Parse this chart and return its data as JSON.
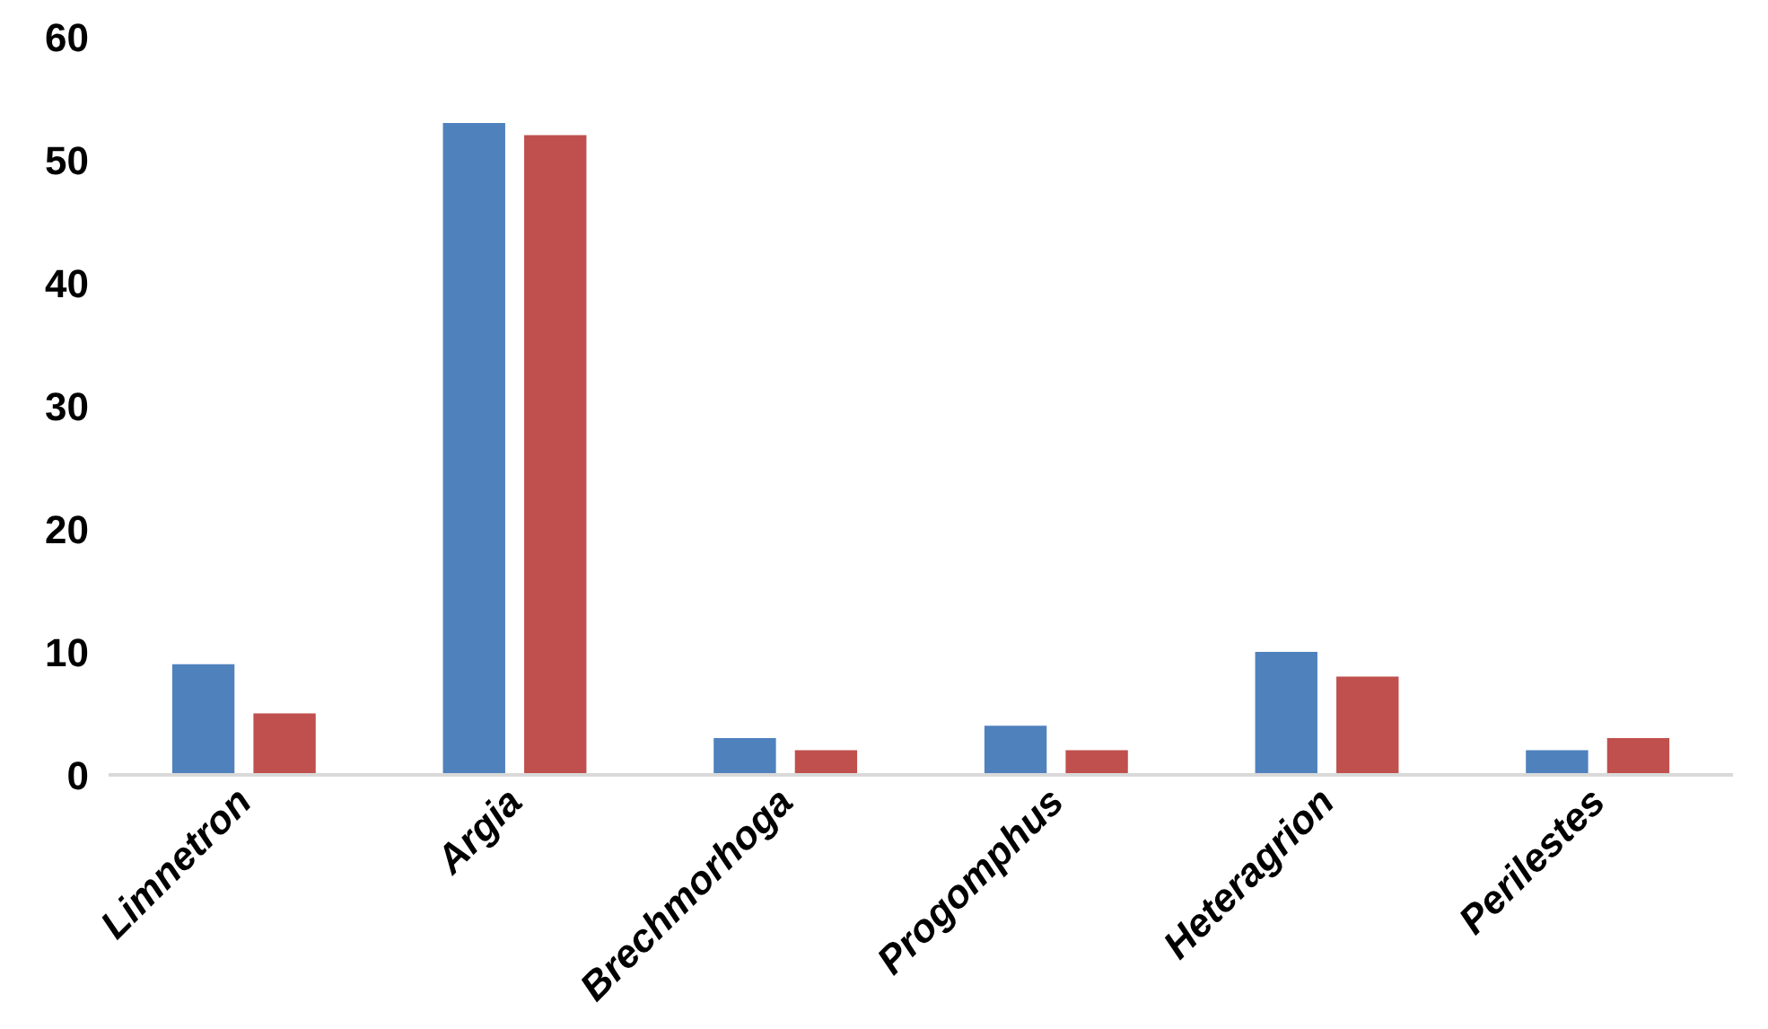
{
  "chart_data": {
    "type": "bar",
    "categories": [
      "Limnetron",
      "Argia",
      "Brechmorhoga",
      "Progomphus",
      "Heteragrion",
      "Perilestes"
    ],
    "series": [
      {
        "color": "#4f81bd",
        "values": [
          9,
          53,
          3,
          4,
          10,
          2
        ]
      },
      {
        "color": "#c0504d",
        "values": [
          5,
          52,
          2,
          2,
          8,
          3
        ]
      }
    ],
    "ylim": [
      0,
      60
    ],
    "yticks": [
      0,
      10,
      20,
      30,
      40,
      50,
      60
    ]
  }
}
